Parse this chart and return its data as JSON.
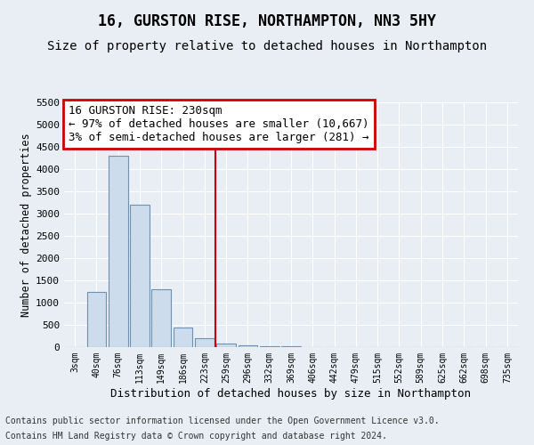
{
  "title": "16, GURSTON RISE, NORTHAMPTON, NN3 5HY",
  "subtitle": "Size of property relative to detached houses in Northampton",
  "xlabel": "Distribution of detached houses by size in Northampton",
  "ylabel": "Number of detached properties",
  "footnote1": "Contains HM Land Registry data © Crown copyright and database right 2024.",
  "footnote2": "Contains public sector information licensed under the Open Government Licence v3.0.",
  "bar_labels": [
    "3sqm",
    "40sqm",
    "76sqm",
    "113sqm",
    "149sqm",
    "186sqm",
    "223sqm",
    "259sqm",
    "296sqm",
    "332sqm",
    "369sqm",
    "406sqm",
    "442sqm",
    "479sqm",
    "515sqm",
    "552sqm",
    "589sqm",
    "625sqm",
    "662sqm",
    "698sqm",
    "735sqm"
  ],
  "bar_values": [
    0,
    1250,
    4300,
    3200,
    1300,
    450,
    200,
    80,
    40,
    20,
    20,
    0,
    0,
    0,
    0,
    0,
    0,
    0,
    0,
    0,
    0
  ],
  "bar_color": "#ccdcec",
  "bar_edge_color": "#7090b0",
  "ylim": [
    0,
    5500
  ],
  "yticks": [
    0,
    500,
    1000,
    1500,
    2000,
    2500,
    3000,
    3500,
    4000,
    4500,
    5000,
    5500
  ],
  "property_label": "16 GURSTON RISE: 230sqm",
  "annotation_line1": "← 97% of detached houses are smaller (10,667)",
  "annotation_line2": "3% of semi-detached houses are larger (281) →",
  "vline_bar_index": 6.5,
  "box_color": "#cc0000",
  "background_color": "#e8eef4",
  "grid_color": "#ffffff",
  "title_fontsize": 12,
  "subtitle_fontsize": 10,
  "annotation_fontsize": 9
}
